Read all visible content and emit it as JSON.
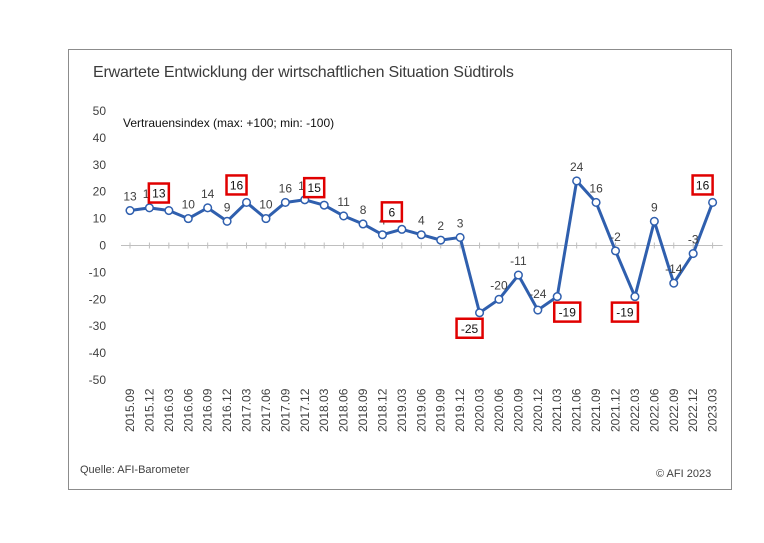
{
  "title": "Erwartete Entwicklung der wirtschaftlichen Situation Südtirols",
  "subtitle": "Vertrauensindex (max: +100; min: -100)",
  "source": "Quelle: AFI-Barometer",
  "copyright": "© AFI 2023",
  "colors": {
    "line": "#2f5fae",
    "highlight": "#e00000",
    "axis": "#bfbfbf"
  },
  "chart_data": {
    "type": "line",
    "title": "Erwartete Entwicklung der wirtschaftlichen Situation Südtirols",
    "ylabel": "",
    "xlabel": "",
    "ylim": [
      -50,
      50
    ],
    "yticks": [
      50,
      40,
      30,
      20,
      10,
      0,
      -10,
      -20,
      -30,
      -40,
      -50
    ],
    "grid": false,
    "categories": [
      "2015.09",
      "2015.12",
      "2016.03",
      "2016.06",
      "2016.09",
      "2016.12",
      "2017.03",
      "2017.06",
      "2017.09",
      "2017.12",
      "2018.03",
      "2018.06",
      "2018.09",
      "2018.12",
      "2019.03",
      "2019.06",
      "2019.09",
      "2019.12",
      "2020.03",
      "2020.06",
      "2020.09",
      "2020.12",
      "2021.03",
      "2021.06",
      "2021.09",
      "2021.12",
      "2022.03",
      "2022.06",
      "2022.09",
      "2022.12",
      "2023.03"
    ],
    "values": [
      13,
      14,
      13,
      10,
      14,
      9,
      16,
      10,
      16,
      17,
      15,
      11,
      8,
      4,
      6,
      4,
      2,
      3,
      -25,
      -20,
      -11,
      -24,
      -19,
      24,
      16,
      -2,
      -19,
      9,
      -14,
      -3,
      16
    ],
    "highlighted_indices": [
      2,
      6,
      10,
      14,
      18,
      22,
      26,
      30
    ]
  }
}
